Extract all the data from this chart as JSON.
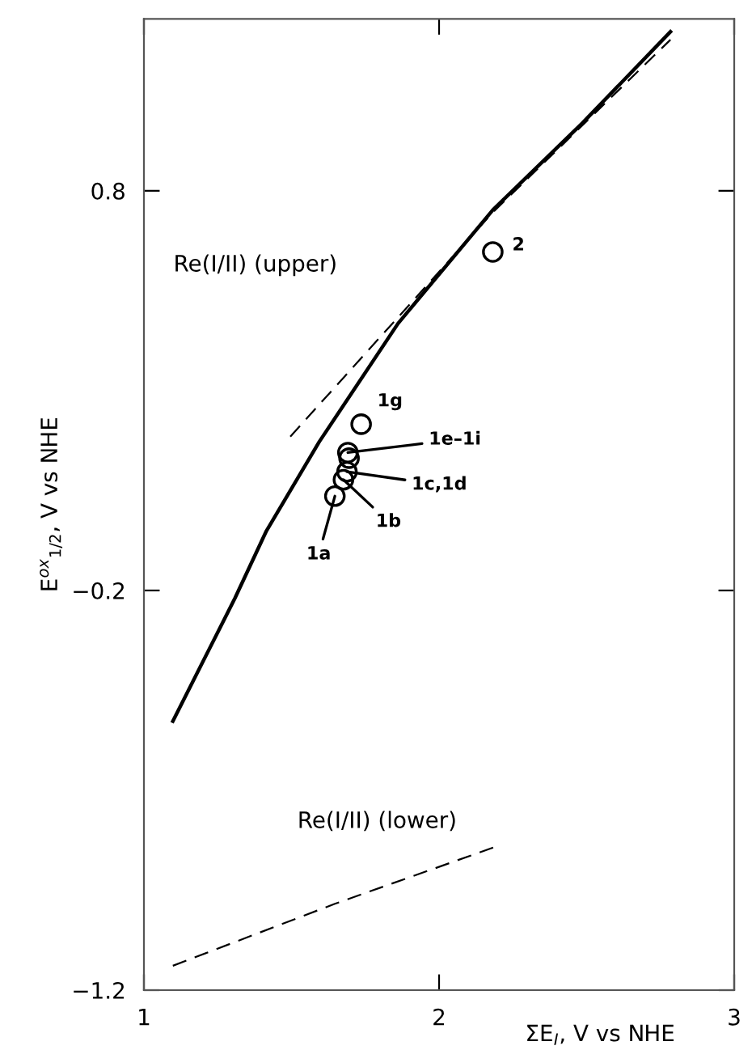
{
  "chart_data": {
    "type": "line",
    "xlabel": "ΣE$_{I}$, V vs NHE",
    "ylabel": "E$^{ox}$$_{1/2}$, V vs NHE",
    "xlim": [
      1,
      3
    ],
    "xticks": [
      1,
      2,
      3
    ],
    "ylim": [
      -1.2,
      1.23
    ],
    "yticks": [
      0.8,
      -0.2,
      -1.2
    ],
    "grid": false,
    "series": [
      {
        "color": "#000000",
        "line_style": "solid",
        "x": [
          1.098,
          1.308,
          1.415,
          1.594,
          1.861,
          2.182,
          2.485,
          2.784
        ],
        "values": [
          -0.527,
          -0.22,
          -0.051,
          0.172,
          0.468,
          0.752,
          0.969,
          1.198
        ]
      },
      {
        "color": "#000000",
        "line_style": "dashed",
        "x": [
          1.496,
          2.182,
          2.784
        ],
        "values": [
          0.185,
          0.746,
          1.178
        ]
      },
      {
        "color": "#000000",
        "line_style": "dashed",
        "x": [
          1.098,
          1.647,
          2.2
        ],
        "values": [
          -1.139,
          -0.984,
          -0.839
        ]
      },
      {
        "type": "scatter",
        "color": "#000000",
        "marker": "circle",
        "x": [
          2.182,
          1.736,
          1.691,
          1.695,
          1.688,
          1.676,
          1.647
        ],
        "values": [
          0.647,
          0.216,
          0.145,
          0.131,
          0.097,
          0.077,
          0.036
        ]
      }
    ],
    "annotations": [
      "Re(I/II) (upper)",
      "Re(I/II) (lower)",
      {
        "text": "2",
        "x": 2.182,
        "y": 0.647
      },
      {
        "text": "1g",
        "x": 1.736,
        "y": 0.216
      },
      {
        "text": "1e–1i",
        "x": 1.691,
        "y": 0.145
      },
      {
        "text": "1c,1d",
        "x": 1.688,
        "y": 0.097
      },
      {
        "text": "1b",
        "x": 1.676,
        "y": 0.077
      },
      {
        "text": "1a",
        "x": 1.647,
        "y": 0.036
      }
    ]
  }
}
